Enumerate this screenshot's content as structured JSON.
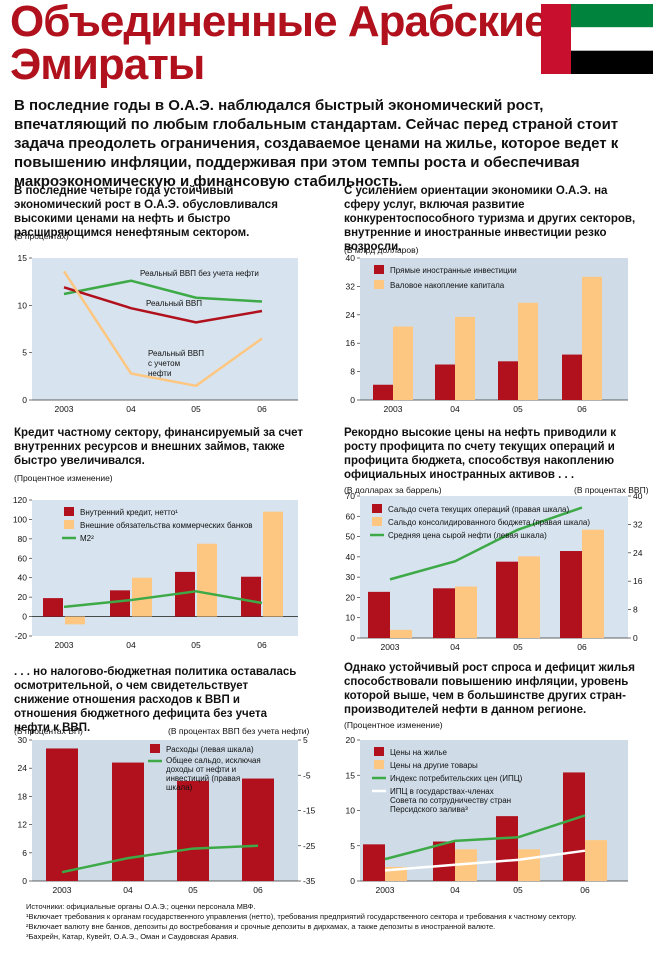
{
  "header": {
    "title_line1": "Объединенные Арабские",
    "title_line2": "Эмираты",
    "lead": "В последние годы в О.А.Э. наблюдался быстрый экономический рост, впечатляющий по любым глобальным стандартам. Сейчас перед страной стоит задача преодолеть ограничения, создаваемое ценами на жилье, которое ведет к повышению инфляции, поддерживая при этом темпы роста и обеспечивая макроэкономическую и финансовую стабильность.",
    "flag_colors": {
      "red": "#c8102e",
      "green": "#00843d",
      "white": "#ffffff",
      "black": "#000000"
    }
  },
  "panels": [
    {
      "caption": "В последние четыре года устойчивый экономический рост в О.А.Э. обусловливался высокими ценами на нефть и быстро расширяющимся ненефтяным сектором.",
      "unit": "(В процентах)"
    },
    {
      "caption": "С усилением ориентации экономики О.А.Э. на сферу услуг, включая развитие конкурентоспособного туризма и других секторов, внутренние и иностранные инвестиции резко возросли.",
      "unit": "(В млрд долларов)"
    },
    {
      "caption": "Кредит частному сектору, финансируемый за счет внутренних ресурсов и внешних займов, также быстро увеличивался.",
      "unit": "(Процентное изменение)"
    },
    {
      "caption": "Рекордно высокие цены на нефть приводили к росту профицита по счету текущих операций и профицита бюджета, способствуя накоплению официальных иностранных активов . . .",
      "unit_left": "(В долларах за баррель)",
      "unit_right": "(В процентах ВВП)"
    },
    {
      "caption": ". . . но налогово-бюджетная политика оставалась осмотрительной, о чем свидетельствует снижение отношения расходов к ВВП и отношения бюджетного дефицита без учета нефти к ВВП.",
      "unit_left": "(В процентах ВП)",
      "unit_right": "(В процентах ВВП без учета нефти)"
    },
    {
      "caption": "Однако устойчивый рост спроса и дефицит жилья способствовали повышению инфляции, уровень которой выше, чем в большинстве других стран-производителей нефти в данном регионе.",
      "unit": "(Процентное изменение)"
    }
  ],
  "notes": [
    "Источники: официальные органы О.А.Э.; оценки персонала МВФ.",
    "¹Включает требования к органам государственного управления (нетто), требования предприятий государственного сектора и требования к частному сектору.",
    "²Включает валюту вне банков, депозиты до востребования и срочные депозиты в дирхамах, а также депозиты в иностранной валюте.",
    "³Бахрейн, Катар, Кувейт, О.А.Э., Оман и Саудовская Аравия."
  ],
  "colors": {
    "red": "#b0111c",
    "orange": "#fdc782",
    "green": "#3daa47",
    "panel_bg": "#d7e3ee",
    "bar_bg": "#cfdce8"
  },
  "chart_data": [
    {
      "type": "line",
      "x": [
        "2003",
        "04",
        "05",
        "06"
      ],
      "ylim": [
        0,
        15
      ],
      "yticks": [
        0,
        5,
        10,
        15
      ],
      "series": [
        {
          "name": "Реальный ВВП без учета нефти",
          "values": [
            11.2,
            12.6,
            10.8,
            10.4
          ],
          "color": "#3daa47"
        },
        {
          "name": "Реальный ВВП",
          "values": [
            11.9,
            9.7,
            8.2,
            9.4
          ],
          "color": "#b0111c"
        },
        {
          "name": "Реальный ВВП с учетом нефти",
          "values": [
            13.6,
            2.8,
            1.5,
            6.5
          ],
          "color": "#fdc782"
        }
      ]
    },
    {
      "type": "bar",
      "categories": [
        "2003",
        "04",
        "05",
        "06"
      ],
      "ylim": [
        0,
        40
      ],
      "yticks": [
        0,
        8,
        16,
        24,
        32,
        40
      ],
      "series": [
        {
          "name": "Прямые иностранные инвестиции",
          "values": [
            4.3,
            10.0,
            10.9,
            12.8
          ],
          "color": "#b0111c"
        },
        {
          "name": "Валовое накопление капитала",
          "values": [
            20.7,
            23.4,
            27.4,
            34.7
          ],
          "color": "#fdc782"
        }
      ]
    },
    {
      "type": "bar",
      "categories": [
        "2003",
        "04",
        "05",
        "06"
      ],
      "ylim": [
        -20,
        120
      ],
      "yticks": [
        -20,
        0,
        20,
        40,
        60,
        80,
        100,
        120
      ],
      "series": [
        {
          "name": "Внутренний кредит, нетто¹",
          "values": [
            19,
            27,
            46,
            41
          ],
          "color": "#b0111c"
        },
        {
          "name": "Внешние обязательства коммерческих банков",
          "values": [
            -8,
            40,
            75,
            108
          ],
          "color": "#fdc782"
        },
        {
          "name": "M2²",
          "values": [
            10,
            17,
            26,
            14
          ],
          "color": "#3daa47",
          "kind": "line"
        }
      ]
    },
    {
      "type": "bar",
      "categories": [
        "2003",
        "04",
        "05",
        "06"
      ],
      "ylim_left": [
        0,
        70
      ],
      "yticks_left": [
        0,
        10,
        20,
        30,
        40,
        50,
        60,
        70
      ],
      "ylim_right": [
        0,
        40
      ],
      "yticks_right": [
        0,
        8,
        16,
        24,
        32,
        40
      ],
      "series": [
        {
          "name": "Сальдо счета текущих операций (правая шкала)",
          "values": [
            13,
            14,
            21.5,
            24.5
          ],
          "color": "#b0111c",
          "axis": "right"
        },
        {
          "name": "Сальдо консолидированного бюджета (правая шкала)",
          "values": [
            2.3,
            14.5,
            23,
            30.5
          ],
          "color": "#fdc782",
          "axis": "right"
        },
        {
          "name": "Средняя цена сырой нефти (левая шкала)",
          "values": [
            28.9,
            37.8,
            53.4,
            64.3
          ],
          "color": "#3daa47",
          "axis": "left",
          "kind": "line"
        }
      ]
    },
    {
      "type": "bar",
      "categories": [
        "2003",
        "04",
        "05",
        "06"
      ],
      "ylim_left": [
        0,
        30
      ],
      "yticks_left": [
        0,
        6,
        12,
        18,
        24,
        30
      ],
      "ylim_right": [
        -35,
        5
      ],
      "yticks_right": [
        -35,
        -25,
        -15,
        -5,
        5
      ],
      "series": [
        {
          "name": "Расходы (левая шкала)",
          "values": [
            28.2,
            25.2,
            21.3,
            21.8
          ],
          "color": "#b0111c",
          "axis": "left"
        },
        {
          "name": "Общее сальдо, исключая доходы от нефти и инвестиций (правая шкала)",
          "values": [
            -32.5,
            -28.5,
            -25.8,
            -25.0
          ],
          "color": "#3daa47",
          "axis": "right",
          "kind": "line"
        }
      ]
    },
    {
      "type": "bar",
      "categories": [
        "2003",
        "04",
        "05",
        "06"
      ],
      "ylim": [
        0,
        20
      ],
      "yticks": [
        0,
        5,
        10,
        15,
        20
      ],
      "series": [
        {
          "name": "Цены на жилье",
          "values": [
            5.2,
            5.6,
            9.2,
            15.4
          ],
          "color": "#b0111c"
        },
        {
          "name": "Цены на другие товары",
          "values": [
            2.0,
            4.5,
            4.5,
            5.8
          ],
          "color": "#fdc782"
        },
        {
          "name": "Индекс потребительских цен (ИПЦ)",
          "values": [
            3.1,
            5.7,
            6.2,
            9.3
          ],
          "color": "#3daa47",
          "kind": "line"
        },
        {
          "name": "ИПЦ в государствах-членах Совета по сотрудничеству стран Персидского залива³",
          "values": [
            1.5,
            2.3,
            3.0,
            4.3
          ],
          "color": "#ffffff",
          "kind": "line"
        }
      ]
    }
  ]
}
